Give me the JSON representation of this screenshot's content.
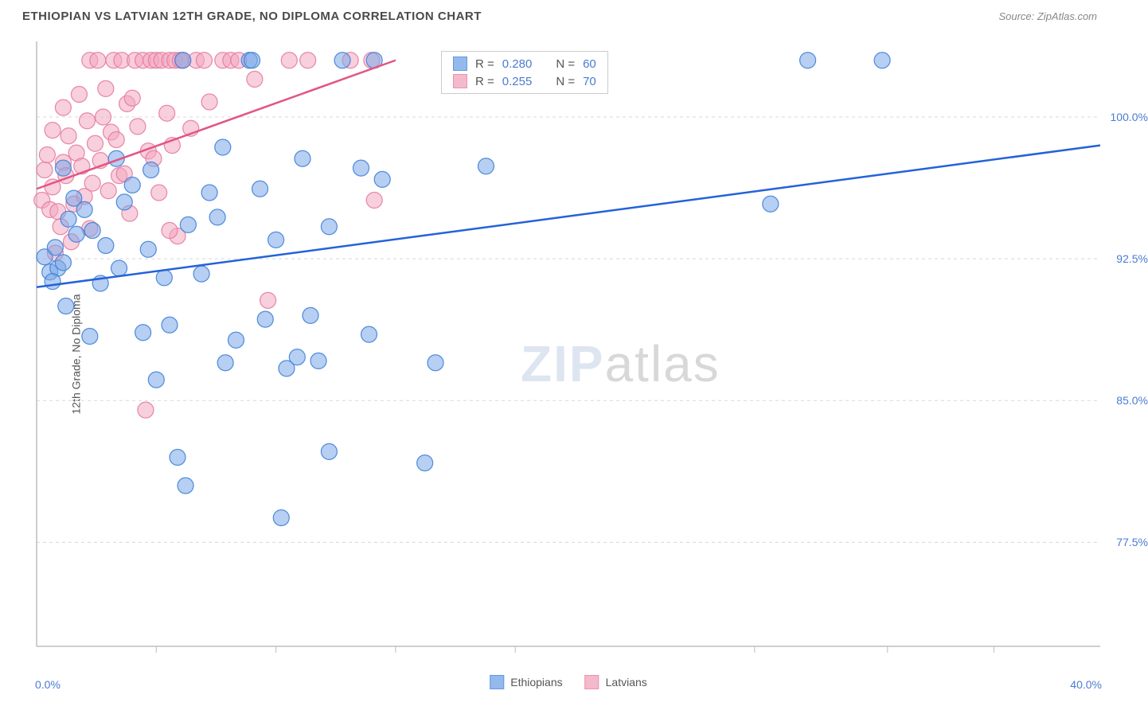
{
  "header": {
    "title": "ETHIOPIAN VS LATVIAN 12TH GRADE, NO DIPLOMA CORRELATION CHART",
    "source": "Source: ZipAtlas.com"
  },
  "chart": {
    "type": "scatter",
    "ylabel": "12th Grade, No Diploma",
    "xlim": [
      0,
      40
    ],
    "ylim": [
      72,
      104
    ],
    "xticks_major": [
      0,
      40
    ],
    "xtick_labels": [
      "0.0%",
      "40.0%"
    ],
    "xticks_minor": [
      4.5,
      9,
      13.5,
      18,
      27,
      32,
      36
    ],
    "yticks": [
      77.5,
      85.0,
      92.5,
      100.0
    ],
    "ytick_labels": [
      "77.5%",
      "85.0%",
      "92.5%",
      "100.0%"
    ],
    "grid_color": "#d8d8d8",
    "axis_color": "#bdbdbd",
    "tick_color": "#bdbdbd",
    "background_color": "#ffffff",
    "marker_radius": 10,
    "marker_opacity": 0.55,
    "marker_stroke_opacity": 0.9,
    "trend_line_width": 2.5,
    "watermark": "ZIPatlas"
  },
  "series": {
    "ethiopians": {
      "label": "Ethiopians",
      "color_fill": "#7aa8e8",
      "color_stroke": "#3f7fd8",
      "trend_color": "#2462d8",
      "R": "0.280",
      "N": "60",
      "trend": {
        "x1": 0,
        "y1": 91.0,
        "x2": 40,
        "y2": 98.5
      },
      "points": [
        [
          0.3,
          92.6
        ],
        [
          0.5,
          91.8
        ],
        [
          0.7,
          93.1
        ],
        [
          0.8,
          92.0
        ],
        [
          0.6,
          91.3
        ],
        [
          1.0,
          92.3
        ],
        [
          1.2,
          94.6
        ],
        [
          1.5,
          93.8
        ],
        [
          1.1,
          90.0
        ],
        [
          1.4,
          95.7
        ],
        [
          1.0,
          97.3
        ],
        [
          1.8,
          95.1
        ],
        [
          2.1,
          94.0
        ],
        [
          2.4,
          91.2
        ],
        [
          2.0,
          88.4
        ],
        [
          2.6,
          93.2
        ],
        [
          3.0,
          97.8
        ],
        [
          3.3,
          95.5
        ],
        [
          3.1,
          92.0
        ],
        [
          3.6,
          96.4
        ],
        [
          4.2,
          93.0
        ],
        [
          4.0,
          88.6
        ],
        [
          4.5,
          86.1
        ],
        [
          4.8,
          91.5
        ],
        [
          4.3,
          97.2
        ],
        [
          5.0,
          89.0
        ],
        [
          5.5,
          103.0
        ],
        [
          5.3,
          82.0
        ],
        [
          5.6,
          80.5
        ],
        [
          5.7,
          94.3
        ],
        [
          6.2,
          91.7
        ],
        [
          6.5,
          96.0
        ],
        [
          6.8,
          94.7
        ],
        [
          7.1,
          87.0
        ],
        [
          7.0,
          98.4
        ],
        [
          7.5,
          88.2
        ],
        [
          8.0,
          103.0
        ],
        [
          8.4,
          96.2
        ],
        [
          8.1,
          103.0
        ],
        [
          8.6,
          89.3
        ],
        [
          9.0,
          93.5
        ],
        [
          9.4,
          86.7
        ],
        [
          9.8,
          87.3
        ],
        [
          9.2,
          78.8
        ],
        [
          10.3,
          89.5
        ],
        [
          10.6,
          87.1
        ],
        [
          11.0,
          94.2
        ],
        [
          11.5,
          103.0
        ],
        [
          10.0,
          97.8
        ],
        [
          12.2,
          97.3
        ],
        [
          12.5,
          88.5
        ],
        [
          13.0,
          96.7
        ],
        [
          11.0,
          82.3
        ],
        [
          12.7,
          103.0
        ],
        [
          15.0,
          87.0
        ],
        [
          14.6,
          81.7
        ],
        [
          16.9,
          97.4
        ],
        [
          29.0,
          103.0
        ],
        [
          27.6,
          95.4
        ],
        [
          31.8,
          103.0
        ]
      ]
    },
    "latvians": {
      "label": "Latvians",
      "color_fill": "#f2a8bf",
      "color_stroke": "#e67a9e",
      "trend_color": "#e35582",
      "R": "0.255",
      "N": "70",
      "trend": {
        "x1": 0,
        "y1": 96.2,
        "x2": 13.5,
        "y2": 103.0
      },
      "points": [
        [
          0.2,
          95.6
        ],
        [
          0.3,
          97.2
        ],
        [
          0.5,
          95.1
        ],
        [
          0.4,
          98.0
        ],
        [
          0.6,
          96.3
        ],
        [
          0.8,
          95.0
        ],
        [
          0.6,
          99.3
        ],
        [
          0.9,
          94.2
        ],
        [
          1.0,
          97.6
        ],
        [
          0.7,
          92.8
        ],
        [
          1.1,
          96.9
        ],
        [
          1.2,
          99.0
        ],
        [
          1.3,
          93.4
        ],
        [
          1.0,
          100.5
        ],
        [
          1.5,
          98.1
        ],
        [
          1.4,
          95.4
        ],
        [
          1.6,
          101.2
        ],
        [
          1.8,
          95.8
        ],
        [
          1.7,
          97.4
        ],
        [
          1.9,
          99.8
        ],
        [
          2.0,
          103.0
        ],
        [
          2.1,
          96.5
        ],
        [
          2.2,
          98.6
        ],
        [
          2.3,
          103.0
        ],
        [
          2.0,
          94.1
        ],
        [
          2.5,
          100.0
        ],
        [
          2.4,
          97.7
        ],
        [
          2.7,
          96.1
        ],
        [
          2.6,
          101.5
        ],
        [
          2.8,
          99.2
        ],
        [
          2.9,
          103.0
        ],
        [
          3.0,
          98.8
        ],
        [
          3.2,
          103.0
        ],
        [
          3.1,
          96.9
        ],
        [
          3.4,
          100.7
        ],
        [
          3.5,
          94.9
        ],
        [
          3.3,
          97.0
        ],
        [
          3.7,
          103.0
        ],
        [
          3.8,
          99.5
        ],
        [
          3.6,
          101.0
        ],
        [
          4.0,
          103.0
        ],
        [
          4.3,
          103.0
        ],
        [
          4.2,
          98.2
        ],
        [
          4.5,
          103.0
        ],
        [
          4.4,
          97.8
        ],
        [
          4.7,
          103.0
        ],
        [
          4.6,
          96.0
        ],
        [
          5.0,
          103.0
        ],
        [
          4.9,
          100.2
        ],
        [
          5.2,
          103.0
        ],
        [
          5.1,
          98.5
        ],
        [
          5.4,
          103.0
        ],
        [
          5.5,
          103.0
        ],
        [
          5.8,
          99.4
        ],
        [
          5.3,
          93.7
        ],
        [
          6.0,
          103.0
        ],
        [
          6.3,
          103.0
        ],
        [
          4.1,
          84.5
        ],
        [
          5.0,
          94.0
        ],
        [
          6.5,
          100.8
        ],
        [
          7.0,
          103.0
        ],
        [
          7.3,
          103.0
        ],
        [
          7.6,
          103.0
        ],
        [
          8.2,
          102.0
        ],
        [
          8.7,
          90.3
        ],
        [
          9.5,
          103.0
        ],
        [
          10.2,
          103.0
        ],
        [
          11.8,
          103.0
        ],
        [
          12.6,
          103.0
        ],
        [
          12.7,
          95.6
        ]
      ]
    }
  },
  "legend_top": {
    "rows": [
      {
        "swatch": "ethiopians",
        "r_label": "R =",
        "r_val": "0.280",
        "n_label": "N =",
        "n_val": "60"
      },
      {
        "swatch": "latvians",
        "r_label": "R =",
        "r_val": "0.255",
        "n_label": "N =",
        "n_val": "70"
      }
    ]
  },
  "legend_bottom": [
    {
      "swatch": "ethiopians",
      "label": "Ethiopians"
    },
    {
      "swatch": "latvians",
      "label": "Latvians"
    }
  ]
}
